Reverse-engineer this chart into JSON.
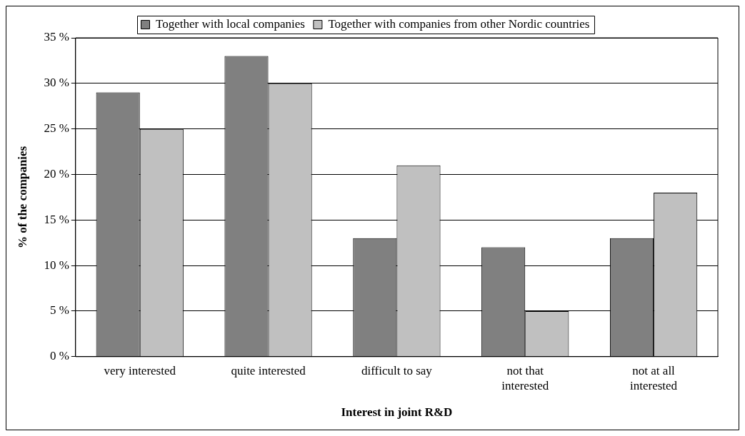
{
  "chart_data": {
    "type": "bar",
    "xlabel": "Interest in joint R&D",
    "ylabel": "% of the companies",
    "categories": [
      "very interested",
      "quite interested",
      "difficult to say",
      "not that interested",
      "not at all interested"
    ],
    "series": [
      {
        "name": "Together with local companies",
        "color": "#808080",
        "values": [
          29,
          33,
          13,
          12,
          13
        ]
      },
      {
        "name": "Together with companies from other Nordic countries",
        "color": "#c0c0c0",
        "values": [
          25,
          30,
          21,
          5,
          18
        ]
      }
    ],
    "ylim": [
      0,
      35
    ],
    "yticks": [
      {
        "value": 0,
        "label": "0 %"
      },
      {
        "value": 5,
        "label": "5 %"
      },
      {
        "value": 10,
        "label": "10 %"
      },
      {
        "value": 15,
        "label": "15 %"
      },
      {
        "value": 20,
        "label": "20 %"
      },
      {
        "value": 25,
        "label": "25 %"
      },
      {
        "value": 30,
        "label": "30 %"
      },
      {
        "value": 35,
        "label": "35 %"
      }
    ],
    "grid": "y",
    "legend": "top"
  }
}
